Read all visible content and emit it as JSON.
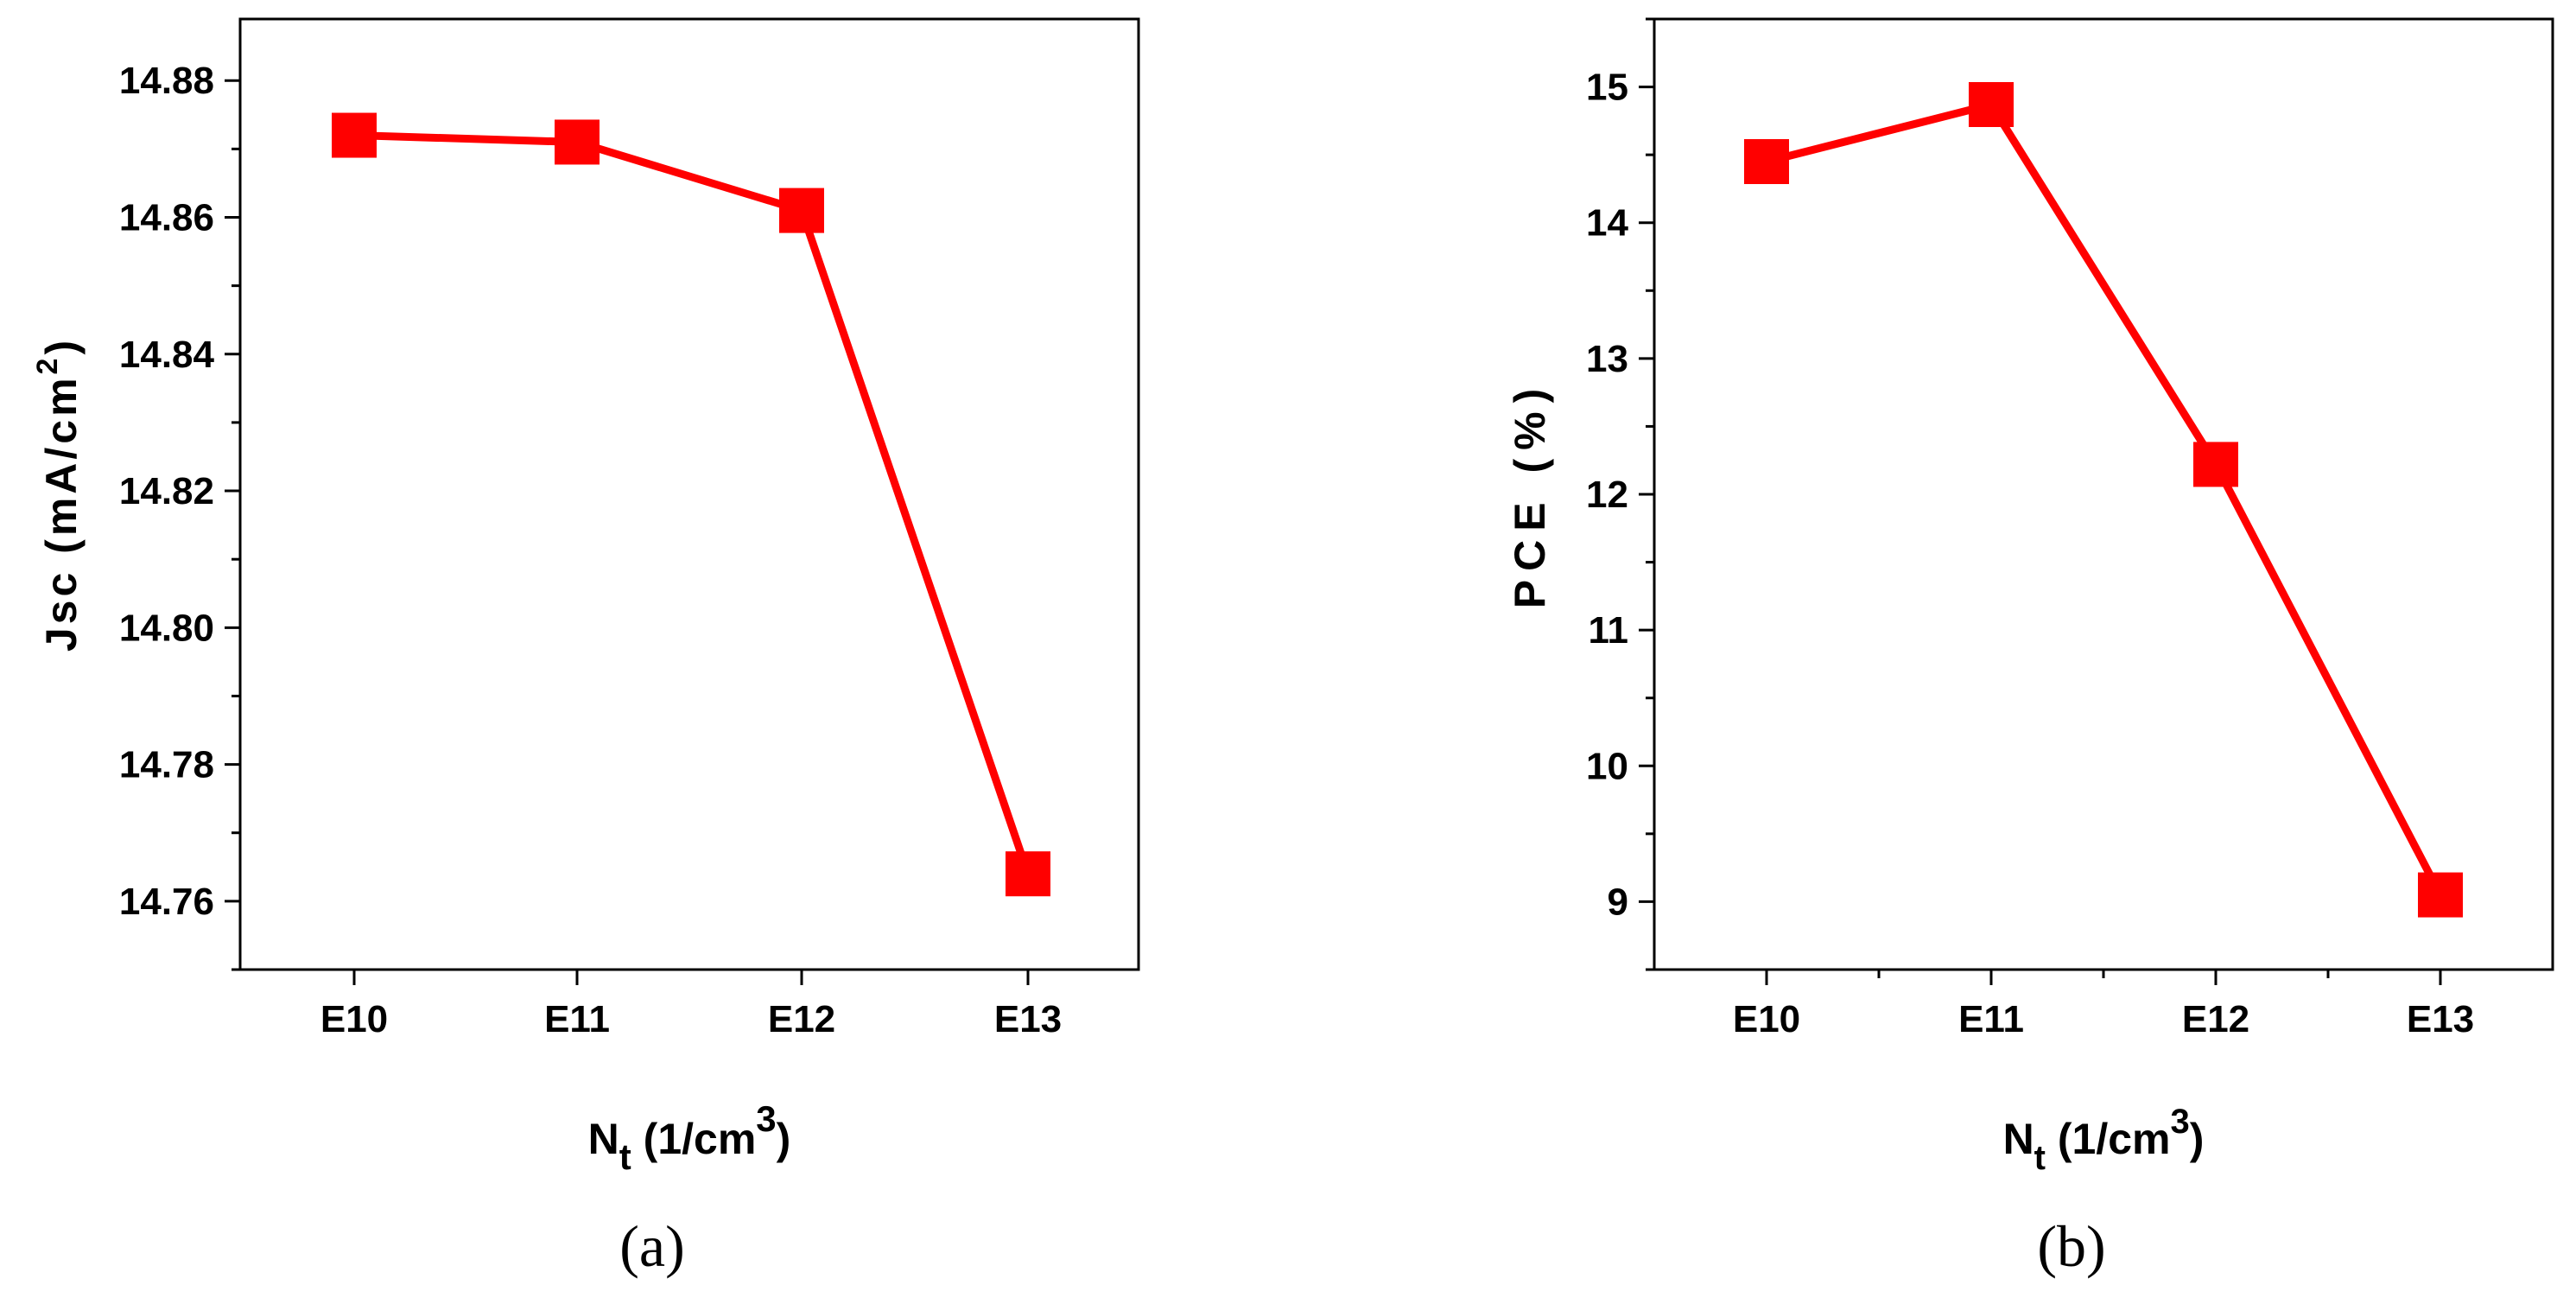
{
  "chart_data": [
    {
      "type": "line",
      "panel_label": "(a)",
      "categories": [
        "E10",
        "E11",
        "E12",
        "E13"
      ],
      "series": [
        {
          "values": [
            14.872,
            14.871,
            14.861,
            14.764
          ]
        }
      ],
      "ylabel": "Jsc (mA/cm²)",
      "ylabel_parts": {
        "main": "Jsc (mA/cm",
        "sup": "2",
        "end": ")"
      },
      "xlabel": "Nt (1/cm³)",
      "xlabel_parts": {
        "main": "N",
        "sub": "t",
        "mid": " (1/cm",
        "sup": "3",
        "end": ")"
      },
      "yticks": [
        "14.76",
        "14.78",
        "14.80",
        "14.82",
        "14.84",
        "14.86",
        "14.88"
      ],
      "ylim": [
        14.75,
        14.889
      ],
      "marker": "square",
      "color": "#ff0000",
      "grid": false
    },
    {
      "type": "line",
      "panel_label": "(b)",
      "categories": [
        "E10",
        "E11",
        "E12",
        "E13"
      ],
      "series": [
        {
          "values": [
            14.45,
            14.87,
            12.22,
            9.05
          ]
        }
      ],
      "ylabel": "PCE (%)",
      "xlabel": "Nt (1/cm³)",
      "xlabel_parts": {
        "main": "N",
        "sub": "t",
        "mid": " (1/cm",
        "sup": "3",
        "end": ")"
      },
      "yticks": [
        "9",
        "10",
        "11",
        "12",
        "13",
        "14",
        "15"
      ],
      "ylim": [
        8.5,
        15.5
      ],
      "marker": "square",
      "color": "#ff0000",
      "grid": false
    }
  ]
}
